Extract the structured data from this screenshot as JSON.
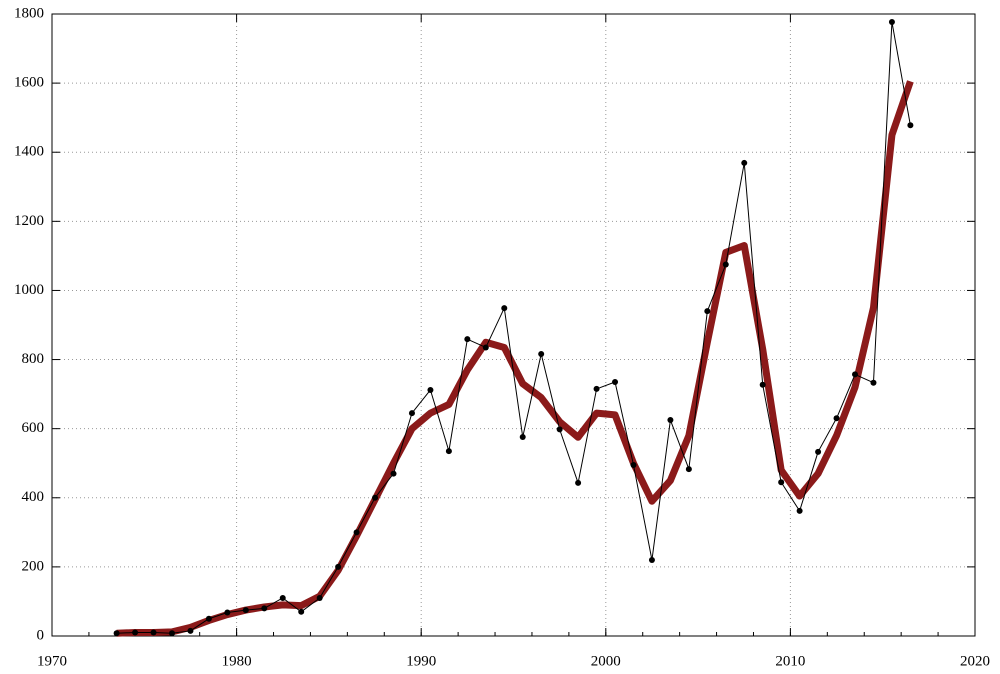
{
  "chart_data": {
    "type": "line",
    "x": [
      1973.5,
      1974.5,
      1975.5,
      1976.5,
      1977.5,
      1978.5,
      1979.5,
      1980.5,
      1981.5,
      1982.5,
      1983.5,
      1984.5,
      1985.5,
      1986.5,
      1987.5,
      1988.5,
      1989.5,
      1990.5,
      1991.5,
      1992.5,
      1993.5,
      1994.5,
      1995.5,
      1996.5,
      1997.5,
      1998.5,
      1999.5,
      2000.5,
      2001.5,
      2002.5,
      2003.5,
      2004.5,
      2005.5,
      2006.5,
      2007.5,
      2008.5,
      2009.5,
      2010.5,
      2011.5,
      2012.5,
      2013.5,
      2014.5,
      2015.5,
      2016.5
    ],
    "series": [
      {
        "color": "#8b1a1a",
        "width": 7,
        "markers": false,
        "values": [
          8,
          10,
          10,
          12,
          25,
          45,
          62,
          75,
          84,
          90,
          88,
          115,
          190,
          290,
          395,
          500,
          600,
          645,
          670,
          770,
          850,
          835,
          730,
          690,
          620,
          575,
          645,
          640,
          500,
          390,
          450,
          580,
          850,
          1110,
          1130,
          830,
          480,
          405,
          470,
          580,
          720,
          950,
          1450,
          1605
        ]
      },
      {
        "color": "#000000",
        "width": 1,
        "markers": true,
        "values": [
          8,
          10,
          10,
          8,
          15,
          50,
          68,
          75,
          80,
          110,
          70,
          110,
          200,
          300,
          400,
          470,
          645,
          712,
          535,
          859,
          835,
          949,
          576,
          816,
          598,
          443,
          715,
          735,
          495,
          220,
          625,
          483,
          940,
          1075,
          1369,
          727,
          445,
          362,
          533,
          630,
          757,
          733,
          1777,
          1478
        ]
      }
    ],
    "xlim": [
      1970,
      2020
    ],
    "xticks": [
      1970,
      1980,
      1990,
      2000,
      2010,
      2020
    ],
    "ylim": [
      0,
      1800
    ],
    "yticks": [
      0,
      200,
      400,
      600,
      800,
      1000,
      1200,
      1400,
      1600,
      1800
    ],
    "grid": true
  }
}
